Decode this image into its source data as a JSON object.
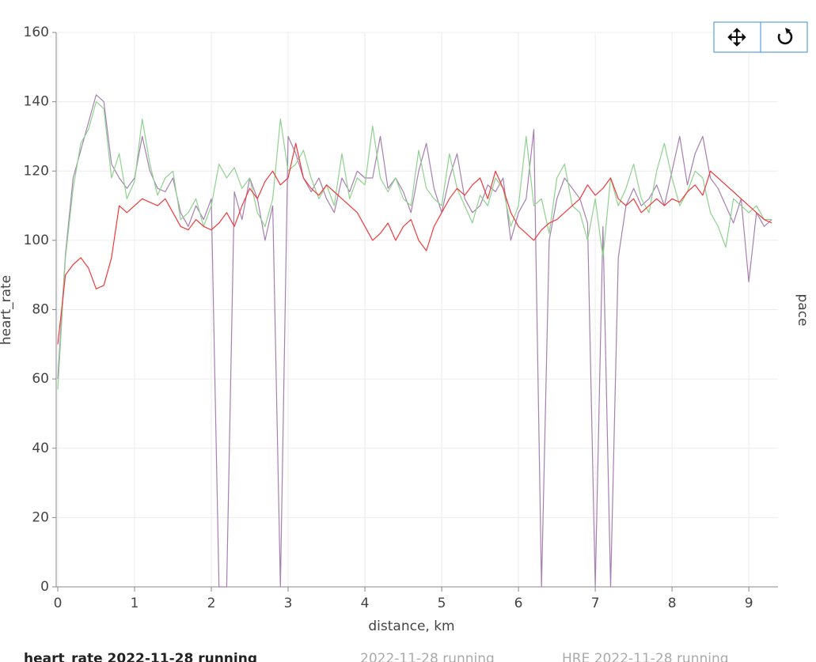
{
  "chart_data": {
    "type": "line",
    "x_label": "distance, km",
    "y_label": "heart_rate",
    "y2_label": "pace",
    "xlim": [
      0,
      9.38
    ],
    "ylim": [
      0,
      160
    ],
    "xticks": [
      0,
      1,
      2,
      3,
      4,
      5,
      6,
      7,
      8,
      9
    ],
    "yticks": [
      0,
      20,
      40,
      60,
      80,
      100,
      120,
      140,
      160
    ],
    "grid": true,
    "x": [
      0,
      0.1,
      0.2,
      0.3,
      0.4,
      0.5,
      0.6,
      0.7,
      0.8,
      0.9,
      1.0,
      1.1,
      1.2,
      1.3,
      1.4,
      1.5,
      1.6,
      1.7,
      1.8,
      1.9,
      2.0,
      2.1,
      2.2,
      2.3,
      2.4,
      2.5,
      2.6,
      2.7,
      2.8,
      2.9,
      3.0,
      3.1,
      3.2,
      3.3,
      3.4,
      3.5,
      3.6,
      3.7,
      3.8,
      3.9,
      4.0,
      4.1,
      4.2,
      4.3,
      4.4,
      4.5,
      4.6,
      4.7,
      4.8,
      4.9,
      5.0,
      5.1,
      5.2,
      5.3,
      5.4,
      5.5,
      5.6,
      5.7,
      5.8,
      5.9,
      6.0,
      6.1,
      6.2,
      6.3,
      6.4,
      6.5,
      6.6,
      6.7,
      6.8,
      6.9,
      7.0,
      7.1,
      7.2,
      7.3,
      7.4,
      7.5,
      7.6,
      7.7,
      7.8,
      7.9,
      8.0,
      8.1,
      8.2,
      8.3,
      8.4,
      8.5,
      8.6,
      8.7,
      8.8,
      8.9,
      9.0,
      9.1,
      9.2,
      9.3
    ],
    "series": [
      {
        "name": "heart_rate 2022-11-28 running",
        "color": "#a67fb0",
        "values": [
          60,
          96,
          118,
          126,
          134,
          142,
          140,
          122,
          118,
          115,
          118,
          130,
          120,
          115,
          114,
          118,
          108,
          104,
          110,
          106,
          112,
          0,
          0,
          114,
          106,
          118,
          112,
          100,
          110,
          0,
          130,
          125,
          118,
          114,
          118,
          112,
          108,
          118,
          114,
          120,
          118,
          118,
          130,
          115,
          118,
          114,
          108,
          120,
          128,
          115,
          108,
          118,
          125,
          112,
          108,
          110,
          116,
          114,
          118,
          100,
          108,
          112,
          132,
          0,
          100,
          112,
          118,
          115,
          112,
          105,
          0,
          104,
          0,
          95,
          110,
          115,
          110,
          112,
          116,
          110,
          120,
          130,
          116,
          125,
          130,
          118,
          115,
          110,
          105,
          112,
          88,
          108,
          104,
          106
        ]
      },
      {
        "name": "2022-11-28 running",
        "color": "#8fd18f",
        "values": [
          57,
          95,
          115,
          128,
          132,
          140,
          138,
          118,
          125,
          112,
          117,
          135,
          122,
          113,
          118,
          120,
          106,
          108,
          112,
          104,
          110,
          122,
          118,
          121,
          115,
          118,
          108,
          104,
          112,
          135,
          120,
          122,
          126,
          118,
          112,
          116,
          110,
          125,
          112,
          118,
          116,
          133,
          118,
          114,
          118,
          112,
          110,
          126,
          115,
          112,
          110,
          125,
          115,
          110,
          105,
          113,
          110,
          118,
          115,
          104,
          110,
          130,
          110,
          112,
          102,
          118,
          122,
          110,
          108,
          100,
          112,
          95,
          118,
          110,
          115,
          122,
          112,
          108,
          120,
          128,
          118,
          110,
          114,
          120,
          118,
          108,
          104,
          98,
          112,
          110,
          108,
          110,
          106,
          106
        ]
      },
      {
        "name": "HRE 2022-11-28 running",
        "color": "#f03a3a",
        "values": [
          70,
          90,
          93,
          95,
          92,
          86,
          87,
          95,
          110,
          108,
          110,
          112,
          111,
          110,
          112,
          108,
          104,
          103,
          106,
          104,
          103,
          105,
          108,
          104,
          110,
          115,
          112,
          117,
          120,
          116,
          118,
          128,
          118,
          115,
          113,
          116,
          114,
          112,
          110,
          108,
          104,
          100,
          102,
          105,
          100,
          104,
          106,
          100,
          97,
          104,
          108,
          112,
          115,
          113,
          116,
          118,
          112,
          120,
          115,
          108,
          104,
          102,
          100,
          103,
          105,
          106,
          108,
          110,
          112,
          116,
          113,
          115,
          118,
          112,
          110,
          112,
          108,
          110,
          112,
          110,
          112,
          111,
          114,
          116,
          113,
          120,
          118,
          116,
          114,
          112,
          110,
          108,
          106,
          105
        ]
      }
    ]
  }
}
